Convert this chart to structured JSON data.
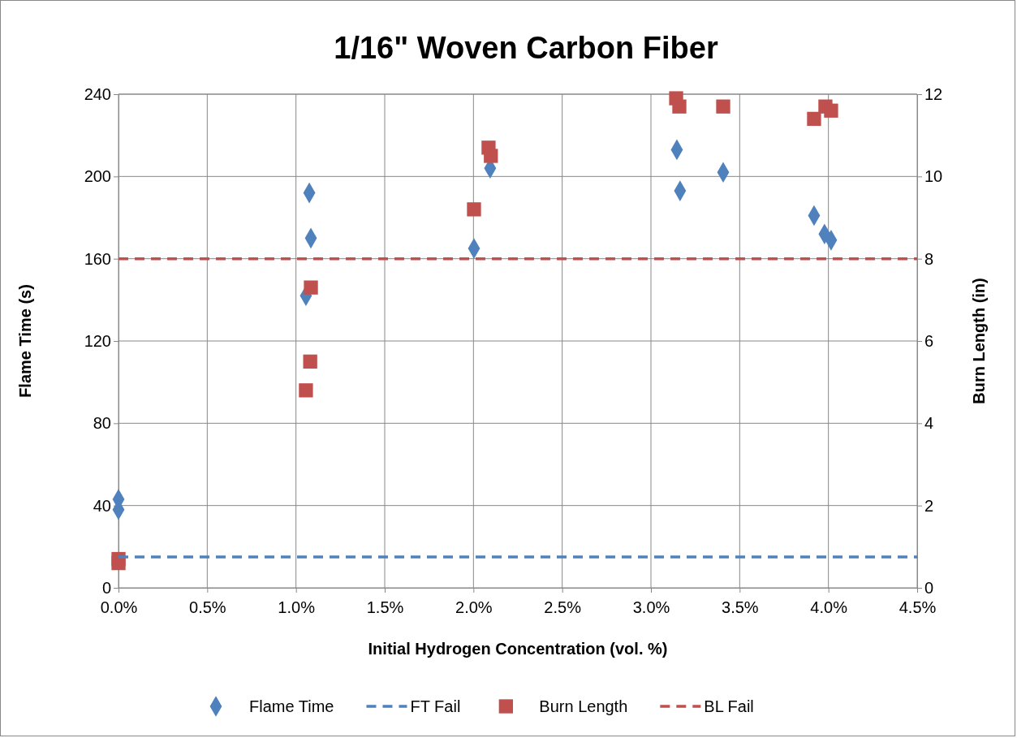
{
  "chart_data": {
    "type": "scatter",
    "title": "1/16\" Woven Carbon Fiber",
    "xlabel": "Initial Hydrogen Concentration (vol. %)",
    "ylabel": "Flame Time (s)",
    "y2label": "Burn Length (in)",
    "xlim": [
      0,
      4.5
    ],
    "xticks": [
      {
        "value": 0,
        "label": "0.0%"
      },
      {
        "value": 0.5,
        "label": "0.5%"
      },
      {
        "value": 1,
        "label": "1.0%"
      },
      {
        "value": 1.5,
        "label": "1.5%"
      },
      {
        "value": 2,
        "label": "2.0%"
      },
      {
        "value": 2.5,
        "label": "2.5%"
      },
      {
        "value": 3,
        "label": "3.0%"
      },
      {
        "value": 3.5,
        "label": "3.5%"
      },
      {
        "value": 4,
        "label": "4.0%"
      },
      {
        "value": 4.5,
        "label": "4.5%"
      }
    ],
    "ylim": [
      0,
      240
    ],
    "yticks": [
      0,
      40,
      80,
      120,
      160,
      200,
      240
    ],
    "y2lim": [
      0,
      12
    ],
    "y2ticks": [
      0,
      2,
      4,
      6,
      8,
      10,
      12
    ],
    "grid": true,
    "legend": "bottom",
    "series": [
      {
        "name": "Flame Time",
        "marker": "diamond",
        "color": "#4f81bd",
        "x": [
          0,
          0,
          1.075,
          1.084,
          1.056,
          2.003,
          2.094,
          3.146,
          3.164,
          3.407,
          3.919,
          3.978,
          4.015
        ],
        "values": [
          43,
          38,
          192,
          170,
          142,
          165,
          204,
          213,
          193,
          202,
          181,
          172,
          169
        ]
      },
      {
        "name": "FT Fail",
        "type": "line",
        "line_style": "dashed",
        "color": "#4f81bd",
        "x": [
          0,
          4.5
        ],
        "values": [
          15,
          15
        ]
      },
      {
        "name": "Burn Length",
        "marker": "square",
        "axis": "y2",
        "color": "#c0504d",
        "x": [
          0,
          0,
          1.084,
          1.08,
          1.056,
          2.003,
          2.085,
          2.098,
          3.142,
          3.16,
          3.407,
          3.919,
          3.983,
          4.015
        ],
        "values": [
          0.7,
          0.6,
          7.3,
          5.5,
          4.8,
          9.2,
          10.7,
          10.5,
          11.9,
          11.7,
          11.7,
          11.4,
          11.7,
          11.6
        ]
      },
      {
        "name": "BL Fail",
        "type": "line",
        "line_style": "dashed",
        "axis": "y2",
        "color": "#c0504d",
        "x": [
          0,
          4.5
        ],
        "values": [
          8,
          8
        ]
      }
    ]
  }
}
